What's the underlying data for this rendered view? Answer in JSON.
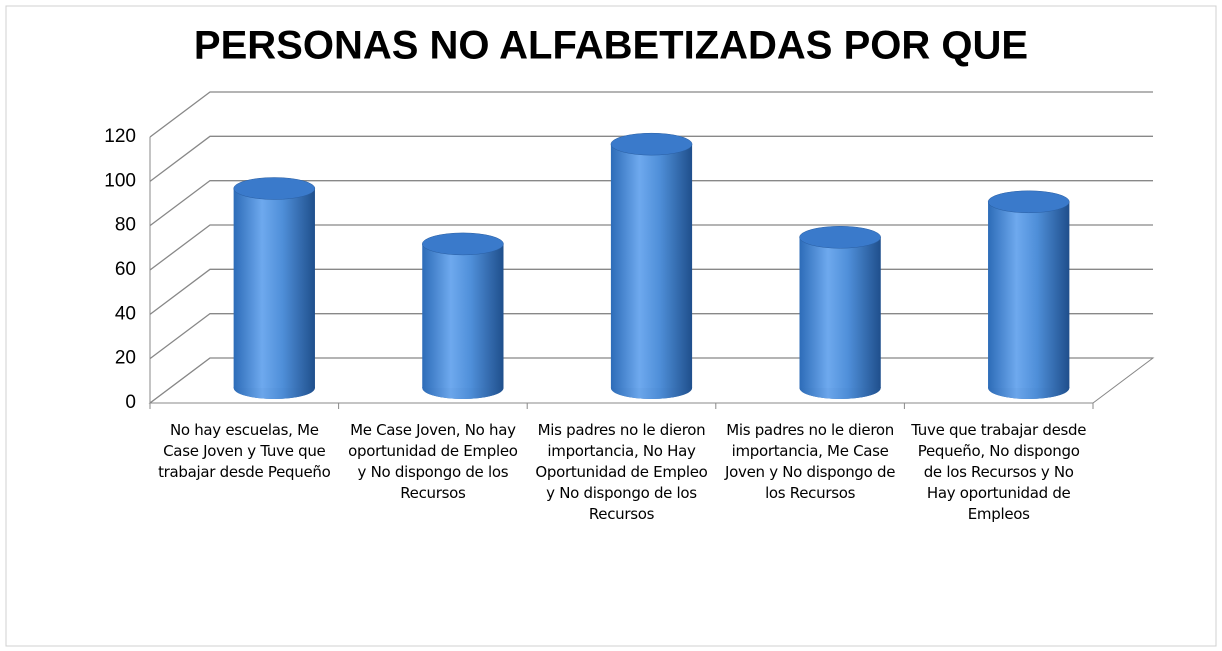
{
  "chart_data": {
    "type": "bar3d",
    "title": "PERSONAS NO ALFABETIZADAS POR QUE",
    "categories": [
      "No hay escuelas, Me Case Joven y Tuve que trabajar desde Pequeño",
      "Me Case Joven, No hay oportunidad de Empleo y No dispongo de los Recursos",
      "Mis padres no le dieron importancia, No Hay Oportunidad de Empleo y No dispongo de los Recursos",
      "Mis padres no le dieron importancia, Me Case Joven y No dispongo de los Recursos",
      "Tuve que trabajar desde Pequeño, No dispongo de los Recursos y No Hay oportunidad de Empleos"
    ],
    "values": [
      90,
      65,
      110,
      68,
      84
    ],
    "color": "#4f8fd9",
    "ylim": [
      0,
      120
    ],
    "yticks": [
      0,
      20,
      40,
      60,
      80,
      100,
      120
    ],
    "grid": true
  }
}
